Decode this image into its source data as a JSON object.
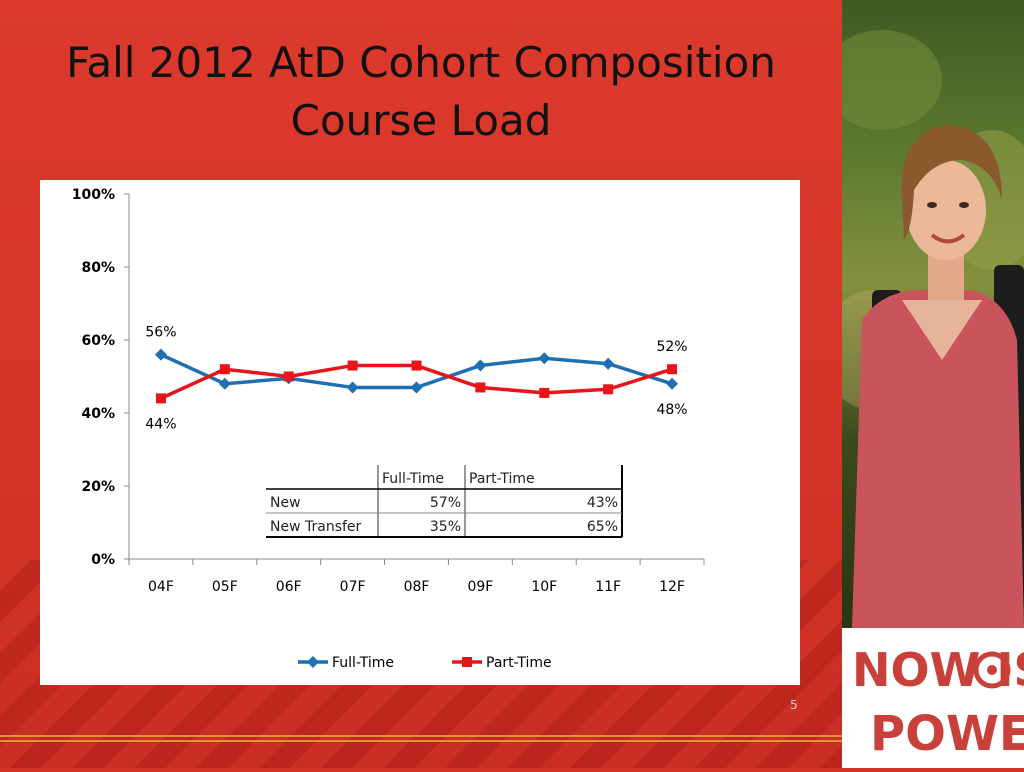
{
  "slide": {
    "title_line1": "Fall 2012 AtD Cohort Composition",
    "title_line2": "Course Load",
    "page_number": "5"
  },
  "logo": {
    "line1": "NOW IS",
    "line2": "POWER"
  },
  "colors": {
    "full_time": "#1f6fb5",
    "part_time": "#e8141a",
    "slide_red": "#d43428"
  },
  "chart_data": {
    "type": "line",
    "categories": [
      "04F",
      "05F",
      "06F",
      "07F",
      "08F",
      "09F",
      "10F",
      "11F",
      "12F"
    ],
    "series": [
      {
        "name": "Full-Time",
        "values": [
          56,
          48,
          49.5,
          47,
          47,
          53,
          55,
          53.5,
          48
        ],
        "marker": "diamond"
      },
      {
        "name": "Part-Time",
        "values": [
          44,
          52,
          50,
          53,
          53,
          47,
          45.5,
          46.5,
          52
        ],
        "marker": "square"
      }
    ],
    "ylim": [
      0,
      100
    ],
    "yticks": [
      0,
      20,
      40,
      60,
      80,
      100
    ],
    "ytick_labels": [
      "0%",
      "20%",
      "40%",
      "60%",
      "80%",
      "100%"
    ],
    "data_labels": [
      {
        "series": 0,
        "index": 0,
        "text": "56%"
      },
      {
        "series": 1,
        "index": 0,
        "text": "44%"
      },
      {
        "series": 1,
        "index": 8,
        "text": "52%"
      },
      {
        "series": 0,
        "index": 8,
        "text": "48%"
      }
    ],
    "legend_position": "bottom",
    "grid": false
  },
  "inset_table": {
    "headers": [
      "",
      "Full-Time",
      "Part-Time"
    ],
    "rows": [
      [
        "New",
        "57%",
        "43%"
      ],
      [
        "New Transfer",
        "35%",
        "65%"
      ]
    ]
  }
}
